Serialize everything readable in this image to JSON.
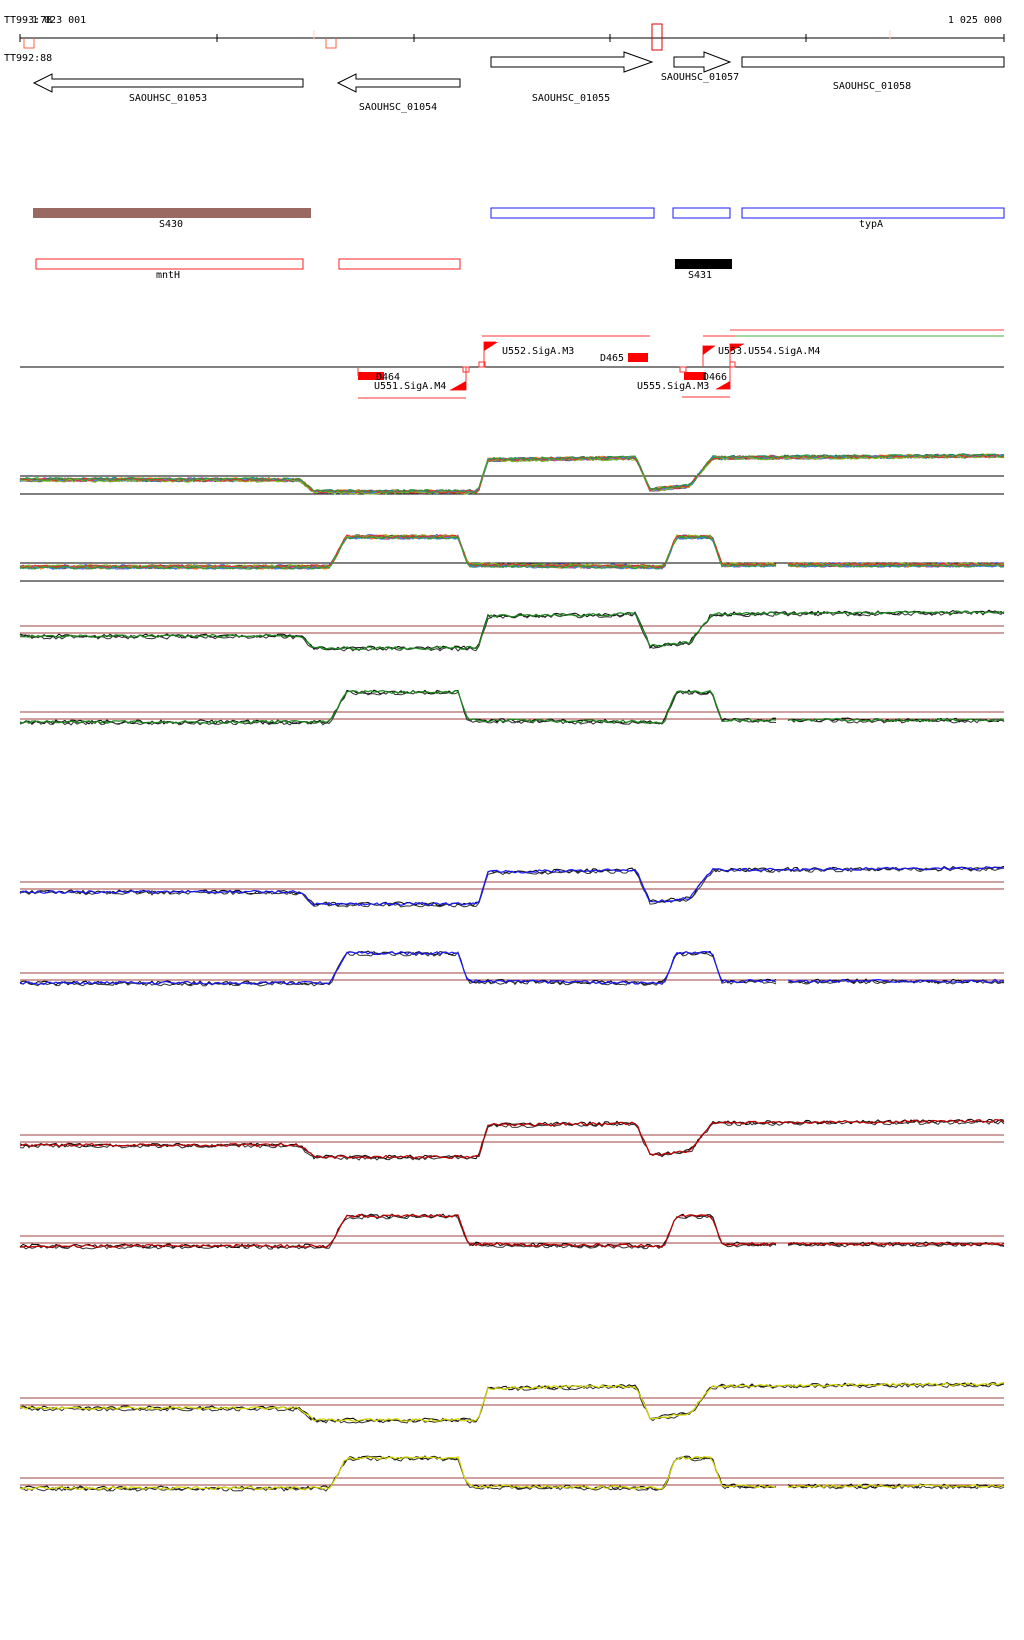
{
  "header": {
    "start_coord": "1 023 001",
    "end_coord": "1 025 000",
    "ttl_label_top": "TT993:78",
    "ttl_label_bottom": "TT992:88"
  },
  "genes": [
    {
      "id": "g1053",
      "label": "SAOUHSC_01053",
      "strand": "-"
    },
    {
      "id": "g1054",
      "label": "SAOUHSC_01054",
      "strand": "-"
    },
    {
      "id": "g1055",
      "label": "SAOUHSC_01055",
      "strand": "+"
    },
    {
      "id": "g1057",
      "label": "SAOUHSC_01057",
      "strand": "+"
    },
    {
      "id": "g1058",
      "label": "SAOUHSC_01058",
      "strand": "+"
    }
  ],
  "annotations": [
    {
      "id": "s430",
      "label": "S430",
      "color": "#9a6a62"
    },
    {
      "id": "typa",
      "label": "typA",
      "color": "#1a1aff"
    },
    {
      "id": "mnth",
      "label": "mntH",
      "color": "#ff2020"
    },
    {
      "id": "s431",
      "label": "S431",
      "color": "#000000"
    }
  ],
  "tss_labels": {
    "u552": "U552.SigA.M3",
    "d465": "D465",
    "u553": "U553.U554.SigA.M4",
    "d464": "D464",
    "u551": "U551.SigA.M4",
    "d466": "D466",
    "u555": "U555.SigA.M3"
  },
  "track_colors": {
    "green": "#1a8a1a",
    "blue": "#1a1aff",
    "red": "#c00000",
    "yellow": "#d8d800",
    "threshold": "#a04040"
  }
}
